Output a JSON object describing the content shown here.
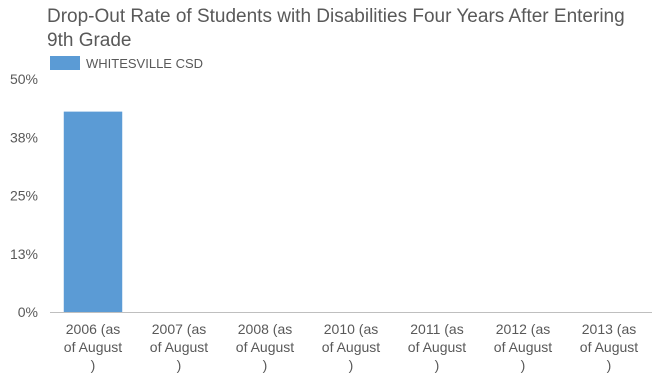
{
  "chart_data": {
    "type": "bar",
    "title": "Drop-Out Rate of Students with Disabilities Four Years After Entering 9th Grade",
    "categories": [
      [
        "2006 (as",
        "of August",
        ")"
      ],
      [
        "2007 (as",
        "of August",
        ")"
      ],
      [
        "2008 (as",
        "of August",
        ")"
      ],
      [
        "2010 (as",
        "of August",
        ")"
      ],
      [
        "2011 (as",
        "of August",
        ")"
      ],
      [
        "2012 (as",
        "of August",
        ")"
      ],
      [
        "2013 (as",
        "of August",
        ")"
      ]
    ],
    "series": [
      {
        "name": "WHITESVILLE CSD",
        "values": [
          43,
          0,
          0,
          0,
          0,
          0,
          0
        ],
        "color": "#5b9bd5"
      }
    ],
    "yticks": [
      0,
      12.5,
      25,
      37.5,
      50
    ],
    "ytick_labels": [
      "0%",
      "13%",
      "25%",
      "38%",
      "50%"
    ],
    "ylim": [
      0,
      50
    ],
    "legend_position": "top-left",
    "grid": false
  }
}
